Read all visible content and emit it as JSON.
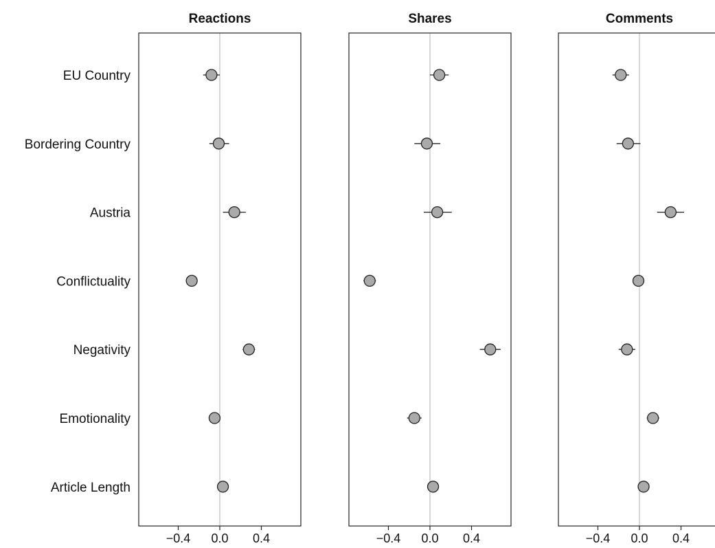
{
  "chart_data": {
    "type": "scatter",
    "subtype": "coefficient-plot-with-error-bars",
    "row_labels": [
      "EU Country",
      "Bordering Country",
      "Austria",
      "Conflictuality",
      "Negativity",
      "Emotionality",
      "Article Length"
    ],
    "x_ticks": [
      -0.4,
      0.0,
      0.4
    ],
    "x_tick_labels": [
      "−0.4",
      "0.0",
      "0.4"
    ],
    "xlim": [
      -0.78,
      0.78
    ],
    "reference_line": 0,
    "grid": false,
    "colors": {
      "point_fill": "#aaaaaa",
      "point_stroke": "#222222",
      "errorbar": "#222222",
      "reference_line": "#cccccc",
      "frame": "#222222"
    },
    "panels": [
      {
        "title": "Reactions",
        "estimates": [
          -0.08,
          -0.01,
          0.14,
          -0.27,
          0.28,
          -0.05,
          0.03
        ],
        "lower": [
          -0.16,
          -0.1,
          0.03,
          -0.29,
          0.22,
          -0.09,
          0.02
        ],
        "upper": [
          0.0,
          0.09,
          0.25,
          -0.25,
          0.34,
          -0.01,
          0.04
        ]
      },
      {
        "title": "Shares",
        "estimates": [
          0.09,
          -0.03,
          0.07,
          -0.58,
          0.58,
          -0.15,
          0.03
        ],
        "lower": [
          0.0,
          -0.15,
          -0.06,
          -0.64,
          0.48,
          -0.22,
          0.02
        ],
        "upper": [
          0.18,
          0.1,
          0.21,
          -0.52,
          0.68,
          -0.08,
          0.04
        ]
      },
      {
        "title": "Comments",
        "estimates": [
          -0.18,
          -0.11,
          0.3,
          -0.01,
          -0.12,
          0.13,
          0.04
        ],
        "lower": [
          -0.26,
          -0.22,
          0.17,
          -0.05,
          -0.2,
          0.07,
          0.03
        ],
        "upper": [
          -0.1,
          0.01,
          0.43,
          0.03,
          -0.04,
          0.19,
          0.05
        ]
      }
    ]
  }
}
